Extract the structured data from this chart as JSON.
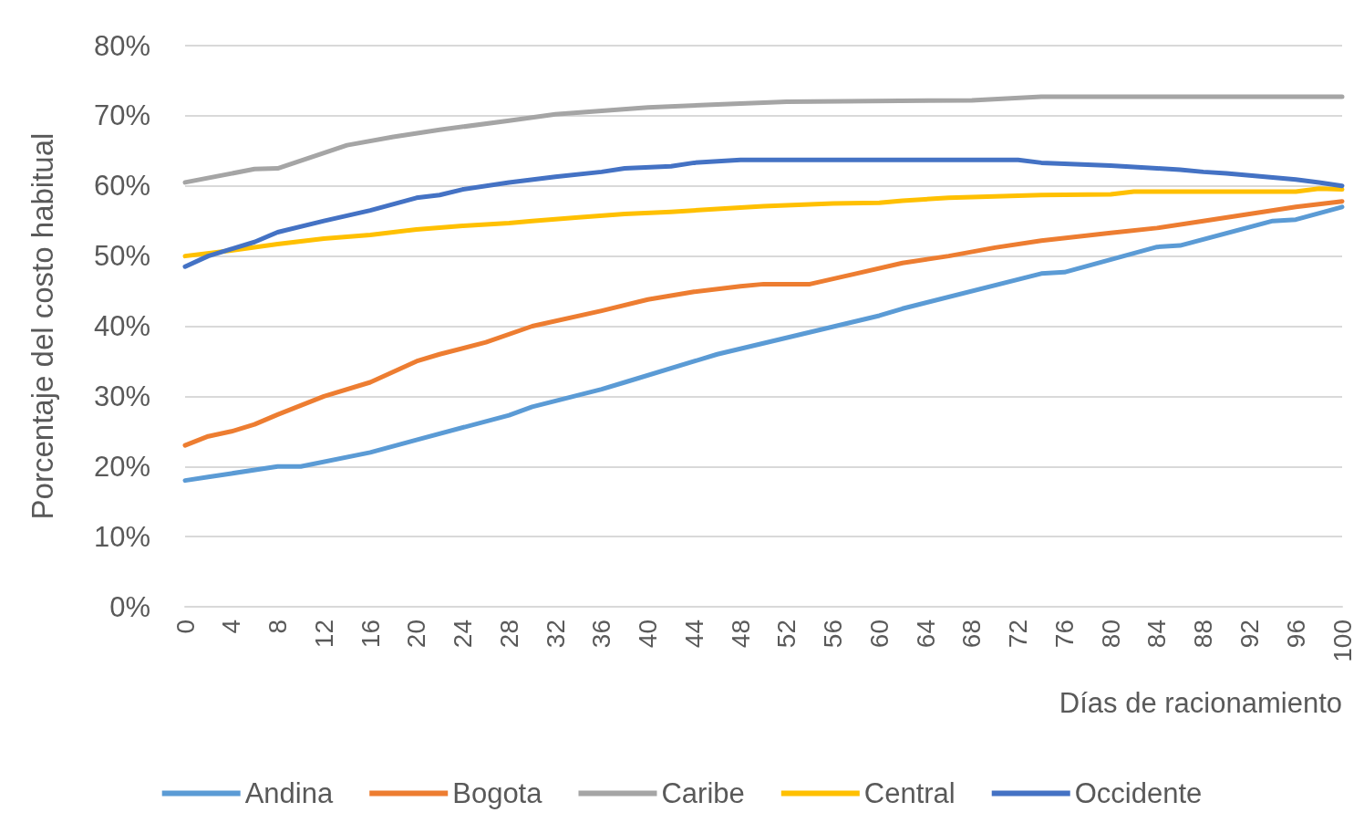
{
  "chart_data": {
    "type": "line",
    "xlabel": "Días de racionamiento",
    "ylabel": "Porcentaje del costo habitual",
    "xlim": [
      0,
      100
    ],
    "xticks": [
      0,
      4,
      8,
      12,
      16,
      20,
      24,
      28,
      32,
      36,
      40,
      44,
      48,
      52,
      56,
      60,
      64,
      68,
      72,
      76,
      80,
      84,
      88,
      92,
      96,
      100
    ],
    "ylim": [
      0,
      80
    ],
    "yticks": [
      {
        "value": 0,
        "label": "0%"
      },
      {
        "value": 10,
        "label": "10%"
      },
      {
        "value": 20,
        "label": "20%"
      },
      {
        "value": 30,
        "label": "30%"
      },
      {
        "value": 40,
        "label": "40%"
      },
      {
        "value": 50,
        "label": "50%"
      },
      {
        "value": 60,
        "label": "60%"
      },
      {
        "value": 70,
        "label": "70%"
      },
      {
        "value": 80,
        "label": "80%"
      }
    ],
    "grid": "y",
    "legend": "bottom",
    "marker": "none",
    "line_style": "solid",
    "series": [
      {
        "name": "Andina",
        "color": "#5b9bd5",
        "x": [
          0,
          2,
          4,
          8,
          10,
          16,
          20,
          28,
          30,
          36,
          38,
          44,
          46,
          60,
          62,
          74,
          76,
          84,
          86,
          94,
          96,
          100
        ],
        "values": [
          18,
          18.5,
          19,
          20,
          20,
          22,
          23.8,
          27.3,
          28.5,
          31,
          32,
          35,
          36,
          41.5,
          42.5,
          47.5,
          47.7,
          51.3,
          51.5,
          55,
          55.2,
          57
        ]
      },
      {
        "name": "Bogota",
        "color": "#ed7d31",
        "x": [
          0,
          2,
          4,
          6,
          8,
          12,
          16,
          20,
          22,
          26,
          30,
          36,
          40,
          44,
          48,
          50,
          54,
          58,
          62,
          66,
          70,
          74,
          80,
          84,
          88,
          92,
          96,
          100
        ],
        "values": [
          23,
          24.3,
          25,
          26,
          27.4,
          30,
          32,
          35,
          36,
          37.7,
          40,
          42.2,
          43.8,
          44.9,
          45.7,
          46,
          46,
          47.5,
          49,
          50,
          51.2,
          52.2,
          53.3,
          54,
          55,
          56,
          57,
          57.8
        ]
      },
      {
        "name": "Caribe",
        "color": "#a5a5a5",
        "x": [
          0,
          6,
          8,
          14,
          18,
          22,
          28,
          32,
          36,
          40,
          46,
          52,
          68,
          74,
          100
        ],
        "values": [
          60.5,
          62.4,
          62.5,
          65.8,
          67,
          68,
          69.3,
          70.2,
          70.7,
          71.2,
          71.6,
          72,
          72.2,
          72.7,
          72.7
        ]
      },
      {
        "name": "Central",
        "color": "#ffc000",
        "x": [
          0,
          4,
          8,
          12,
          16,
          20,
          24,
          28,
          30,
          34,
          38,
          42,
          46,
          50,
          56,
          60,
          62,
          66,
          74,
          80,
          82,
          96,
          98,
          100
        ],
        "values": [
          50,
          50.8,
          51.7,
          52.5,
          53,
          53.8,
          54.3,
          54.7,
          55,
          55.5,
          56,
          56.3,
          56.7,
          57.1,
          57.5,
          57.6,
          57.9,
          58.3,
          58.7,
          58.8,
          59.2,
          59.2,
          59.6,
          59.5
        ]
      },
      {
        "name": "Occidente",
        "color": "#4472c4",
        "x": [
          0,
          2,
          4,
          6,
          8,
          12,
          16,
          20,
          22,
          24,
          28,
          32,
          36,
          38,
          42,
          44,
          48,
          72,
          74,
          80,
          84,
          86,
          88,
          90,
          94,
          96,
          98,
          100
        ],
        "values": [
          48.5,
          50,
          51,
          52,
          53.4,
          55,
          56.5,
          58.3,
          58.7,
          59.5,
          60.5,
          61.3,
          62,
          62.5,
          62.8,
          63.3,
          63.7,
          63.7,
          63.3,
          62.9,
          62.5,
          62.3,
          62,
          61.8,
          61.2,
          60.9,
          60.5,
          60
        ]
      }
    ]
  }
}
